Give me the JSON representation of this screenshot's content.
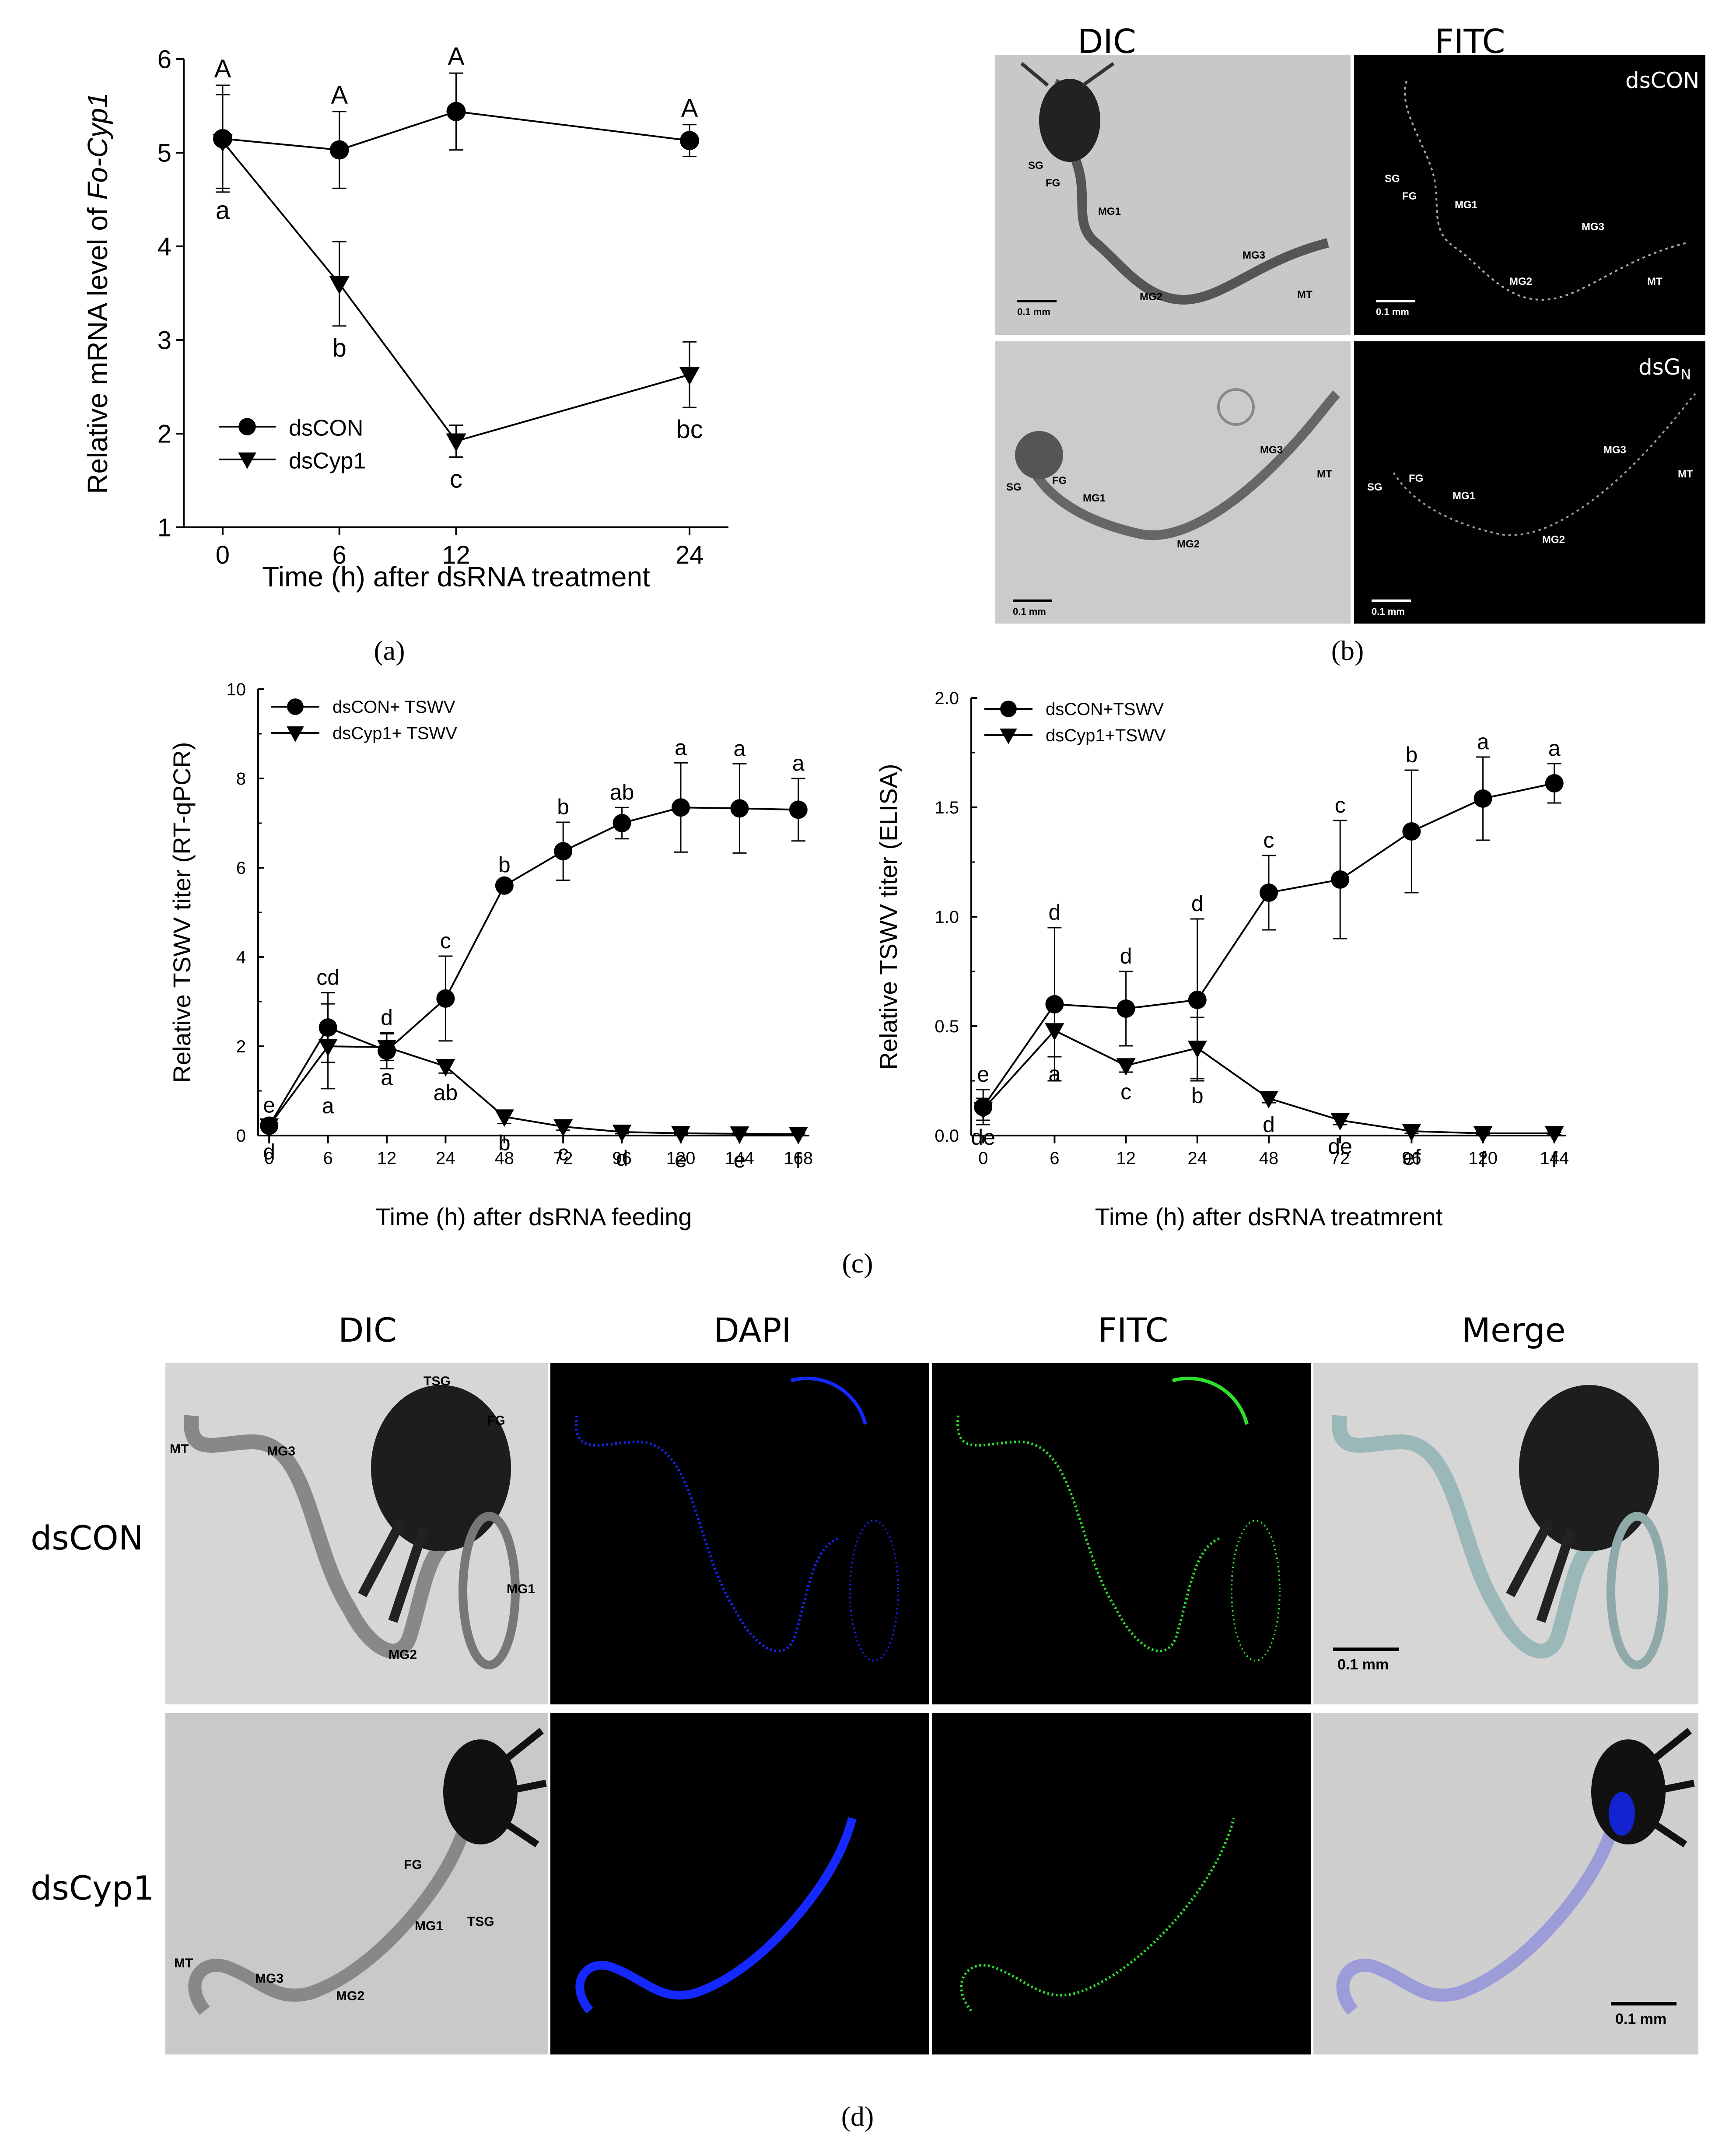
{
  "chart_data": [
    {
      "id": "a",
      "type": "line",
      "x": [
        0,
        6,
        12,
        24
      ],
      "xlabel": "Time (h) after dsRNA treatment",
      "ylabel_prefix": "Relative mRNA level of ",
      "ylabel_italic": "Fo-Cyp1",
      "ylim": [
        1,
        6
      ],
      "yticks": [
        "1",
        "2",
        "3",
        "4",
        "5",
        "6"
      ],
      "xticks": [
        "0",
        "6",
        "12",
        "24"
      ],
      "legend_position": "lower-left",
      "series": [
        {
          "name": "dsCON",
          "marker": "circle",
          "values": [
            5.15,
            5.03,
            5.44,
            5.13
          ],
          "errors": [
            0.57,
            0.41,
            0.41,
            0.17
          ],
          "labels": [
            "A",
            "A",
            "A",
            "A"
          ],
          "label_pos": "above"
        },
        {
          "name": "dsCyp1",
          "marker": "triangle-down",
          "values": [
            5.12,
            3.6,
            1.92,
            2.63
          ],
          "errors": [
            0.5,
            0.45,
            0.17,
            0.35
          ],
          "labels": [
            "a",
            "b",
            "c",
            "bc"
          ],
          "label_pos": "below"
        }
      ]
    },
    {
      "id": "c-left",
      "type": "line",
      "x": [
        0,
        6,
        12,
        24,
        48,
        72,
        96,
        120,
        144,
        168
      ],
      "xlabel": "Time (h) after dsRNA feeding",
      "ylabel": "Relative TSWV titer (RT-qPCR)",
      "ylim": [
        0,
        10
      ],
      "yticks": [
        "0",
        "2",
        "4",
        "6",
        "8",
        "10"
      ],
      "xticks": [
        "0",
        "6",
        "12",
        "24",
        "48",
        "72",
        "96",
        "120",
        "144",
        "168"
      ],
      "legend_position": "top-left",
      "series": [
        {
          "name": "dsCON+ TSWV",
          "marker": "circle",
          "values": [
            0.22,
            2.42,
            1.9,
            3.07,
            5.6,
            6.37,
            7.0,
            7.35,
            7.33,
            7.3
          ],
          "errors": [
            0.12,
            0.78,
            0.4,
            0.95,
            0.12,
            0.65,
            0.35,
            1.0,
            1.0,
            0.7
          ],
          "labels": [
            "e",
            "cd",
            "d",
            "c",
            "b",
            "b",
            "ab",
            "a",
            "a",
            "a"
          ],
          "label_pos": "above"
        },
        {
          "name": "dsCyp1+ TSWV",
          "marker": "triangle-down",
          "values": [
            0.22,
            2.0,
            1.98,
            1.55,
            0.42,
            0.2,
            0.08,
            0.05,
            0.04,
            0.03
          ],
          "errors": [
            0.1,
            0.95,
            0.3,
            0.15,
            0.15,
            0.08,
            0.04,
            0.03,
            0.02,
            0.02
          ],
          "labels": [
            "d",
            "a",
            "a",
            "ab",
            "b",
            "c",
            "d",
            "e",
            "e",
            "f"
          ],
          "label_pos": "below-near"
        }
      ]
    },
    {
      "id": "c-right",
      "type": "line",
      "x": [
        0,
        6,
        12,
        24,
        48,
        72,
        96,
        120,
        144
      ],
      "xlabel": "Time (h) after dsRNA treatmrent",
      "ylabel": "Relative TSWV titer (ELISA)",
      "ylim": [
        0,
        2
      ],
      "yticks": [
        "0.0",
        "0.5",
        "1.0",
        "1.5",
        "2.0"
      ],
      "xticks": [
        "0",
        "6",
        "12",
        "24",
        "48",
        "72",
        "96",
        "120",
        "144"
      ],
      "legend_position": "top-left",
      "series": [
        {
          "name": "dsCON+TSWV",
          "marker": "circle",
          "values": [
            0.13,
            0.6,
            0.58,
            0.62,
            1.11,
            1.17,
            1.39,
            1.54,
            1.61
          ],
          "errors": [
            0.08,
            0.35,
            0.17,
            0.37,
            0.17,
            0.27,
            0.28,
            0.19,
            0.09
          ],
          "labels": [
            "e",
            "d",
            "d",
            "d",
            "c",
            "c",
            "b",
            "a",
            "a"
          ],
          "label_pos": "above"
        },
        {
          "name": "dsCyp1+TSWV",
          "marker": "triangle-down",
          "values": [
            0.12,
            0.48,
            0.32,
            0.4,
            0.17,
            0.07,
            0.02,
            0.01,
            0.01
          ],
          "errors": [
            0.05,
            0.12,
            0.03,
            0.14,
            0.02,
            0.02,
            0.01,
            0.005,
            0.005
          ],
          "labels": [
            "de",
            "a",
            "c",
            "b",
            "d",
            "de",
            "ef",
            "f",
            "f"
          ],
          "label_pos": "below-near"
        }
      ]
    }
  ],
  "captions": {
    "a": "(a)",
    "b": "(b)",
    "c": "(c)",
    "d": "(d)"
  },
  "panel_b": {
    "col_titles": [
      "DIC",
      "FITC"
    ],
    "labels_top": [
      "dsCON"
    ],
    "labels_bottom": [
      "dsG",
      "N"
    ],
    "gut_labels": [
      "SG",
      "FG",
      "MG1",
      "MG2",
      "MG3",
      "MT"
    ],
    "scale": "0.1 mm"
  },
  "panel_d": {
    "col_titles": [
      "DIC",
      "DAPI",
      "FITC",
      "Merge"
    ],
    "row_labels": [
      "dsCON",
      "dsCyp1"
    ],
    "gut_labels": [
      "TSG",
      "FG",
      "MG1",
      "MG2",
      "MG3",
      "MT"
    ],
    "scale": "0.1 mm",
    "colors": {
      "dapi": "#1428ff",
      "fitc": "#2ee02e"
    }
  }
}
